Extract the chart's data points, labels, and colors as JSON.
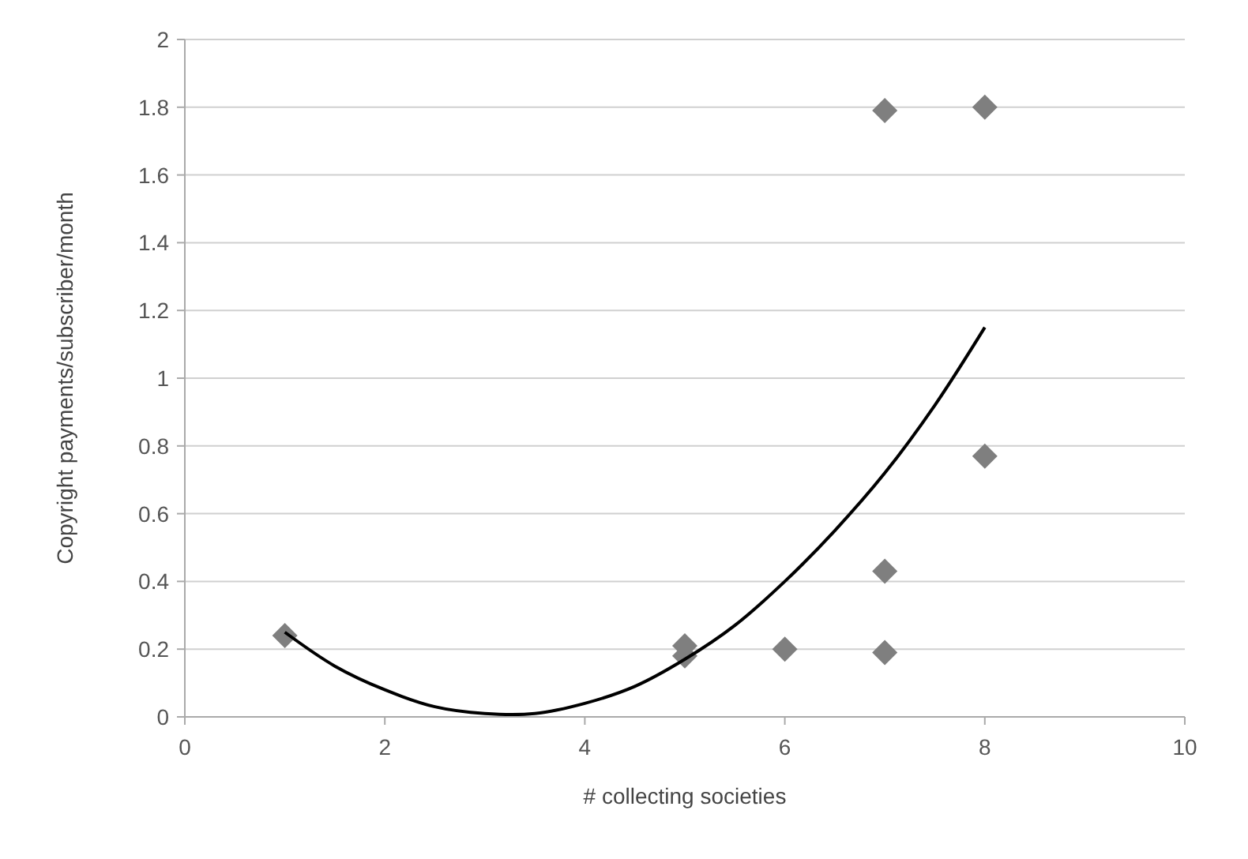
{
  "chart_data": {
    "type": "scatter",
    "xlabel": "# collecting societies",
    "ylabel": "Copyright payments/subscriber/month",
    "xlim": [
      0,
      10
    ],
    "xticks": [
      0,
      2,
      4,
      6,
      8,
      10
    ],
    "ylim": [
      0,
      2
    ],
    "yticks": [
      0,
      {
        "value": 0.2,
        "label": "0.2"
      },
      {
        "value": 0.4,
        "label": "0.4"
      },
      {
        "value": 0.6,
        "label": "0.6"
      },
      {
        "value": 0.8,
        "label": "0.8"
      },
      1,
      {
        "value": 1.2,
        "label": "1.2"
      },
      {
        "value": 1.4,
        "label": "1.4"
      },
      {
        "value": 1.6,
        "label": "1.6"
      },
      {
        "value": 1.8,
        "label": "1.8"
      },
      2
    ],
    "grid": "y",
    "series": [
      {
        "marker": "diamond",
        "color": "#7f7f7f",
        "x": [
          1,
          5,
          5,
          6,
          7,
          7,
          7,
          8,
          8
        ],
        "values": [
          0.24,
          0.21,
          0.18,
          0.2,
          0.19,
          0.43,
          1.79,
          1.8,
          0.77
        ]
      },
      {
        "type": "line",
        "color": "#000000",
        "x": [
          1,
          1.5,
          2,
          2.5,
          3,
          3.5,
          4,
          4.5,
          5,
          5.5,
          6,
          6.5,
          7,
          7.5,
          8
        ],
        "values": [
          0.25,
          0.15,
          0.08,
          0.03,
          0.01,
          0.01,
          0.04,
          0.09,
          0.17,
          0.27,
          0.4,
          0.55,
          0.72,
          0.92,
          1.15
        ]
      }
    ]
  }
}
